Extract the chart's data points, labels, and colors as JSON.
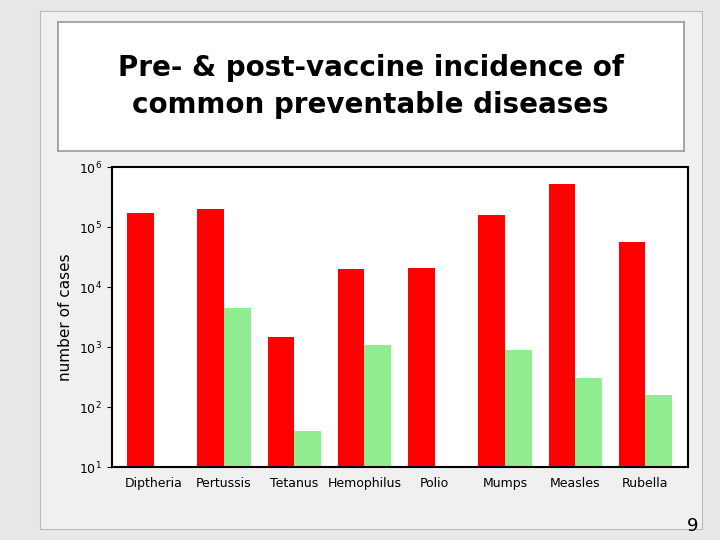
{
  "title": "Pre- & post-vaccine incidence of\ncommon preventable diseases",
  "categories": [
    "Diptheria",
    "Pertussis",
    "Tetanus",
    "Hemophilus",
    "Polio",
    "Mumps",
    "Measles",
    "Rubella"
  ],
  "pre_vaccine": [
    175000,
    200000,
    1500,
    20000,
    21000,
    162000,
    530000,
    57000
  ],
  "post_vaccine": [
    null,
    4500,
    40,
    1100,
    null,
    900,
    310,
    160
  ],
  "bar_color_pre": "#ff0000",
  "bar_color_post": "#90ee90",
  "ylabel": "number of cases",
  "ylim_min": 10,
  "ylim_max": 1000000,
  "background_slide": "#e8e8e8",
  "background_inner": "#f0f0f0",
  "background_chart": "#ffffff",
  "background_title_box": "#ffffff",
  "title_fontsize": 20,
  "axis_fontsize": 11,
  "tick_fontsize": 9,
  "page_number": "9"
}
